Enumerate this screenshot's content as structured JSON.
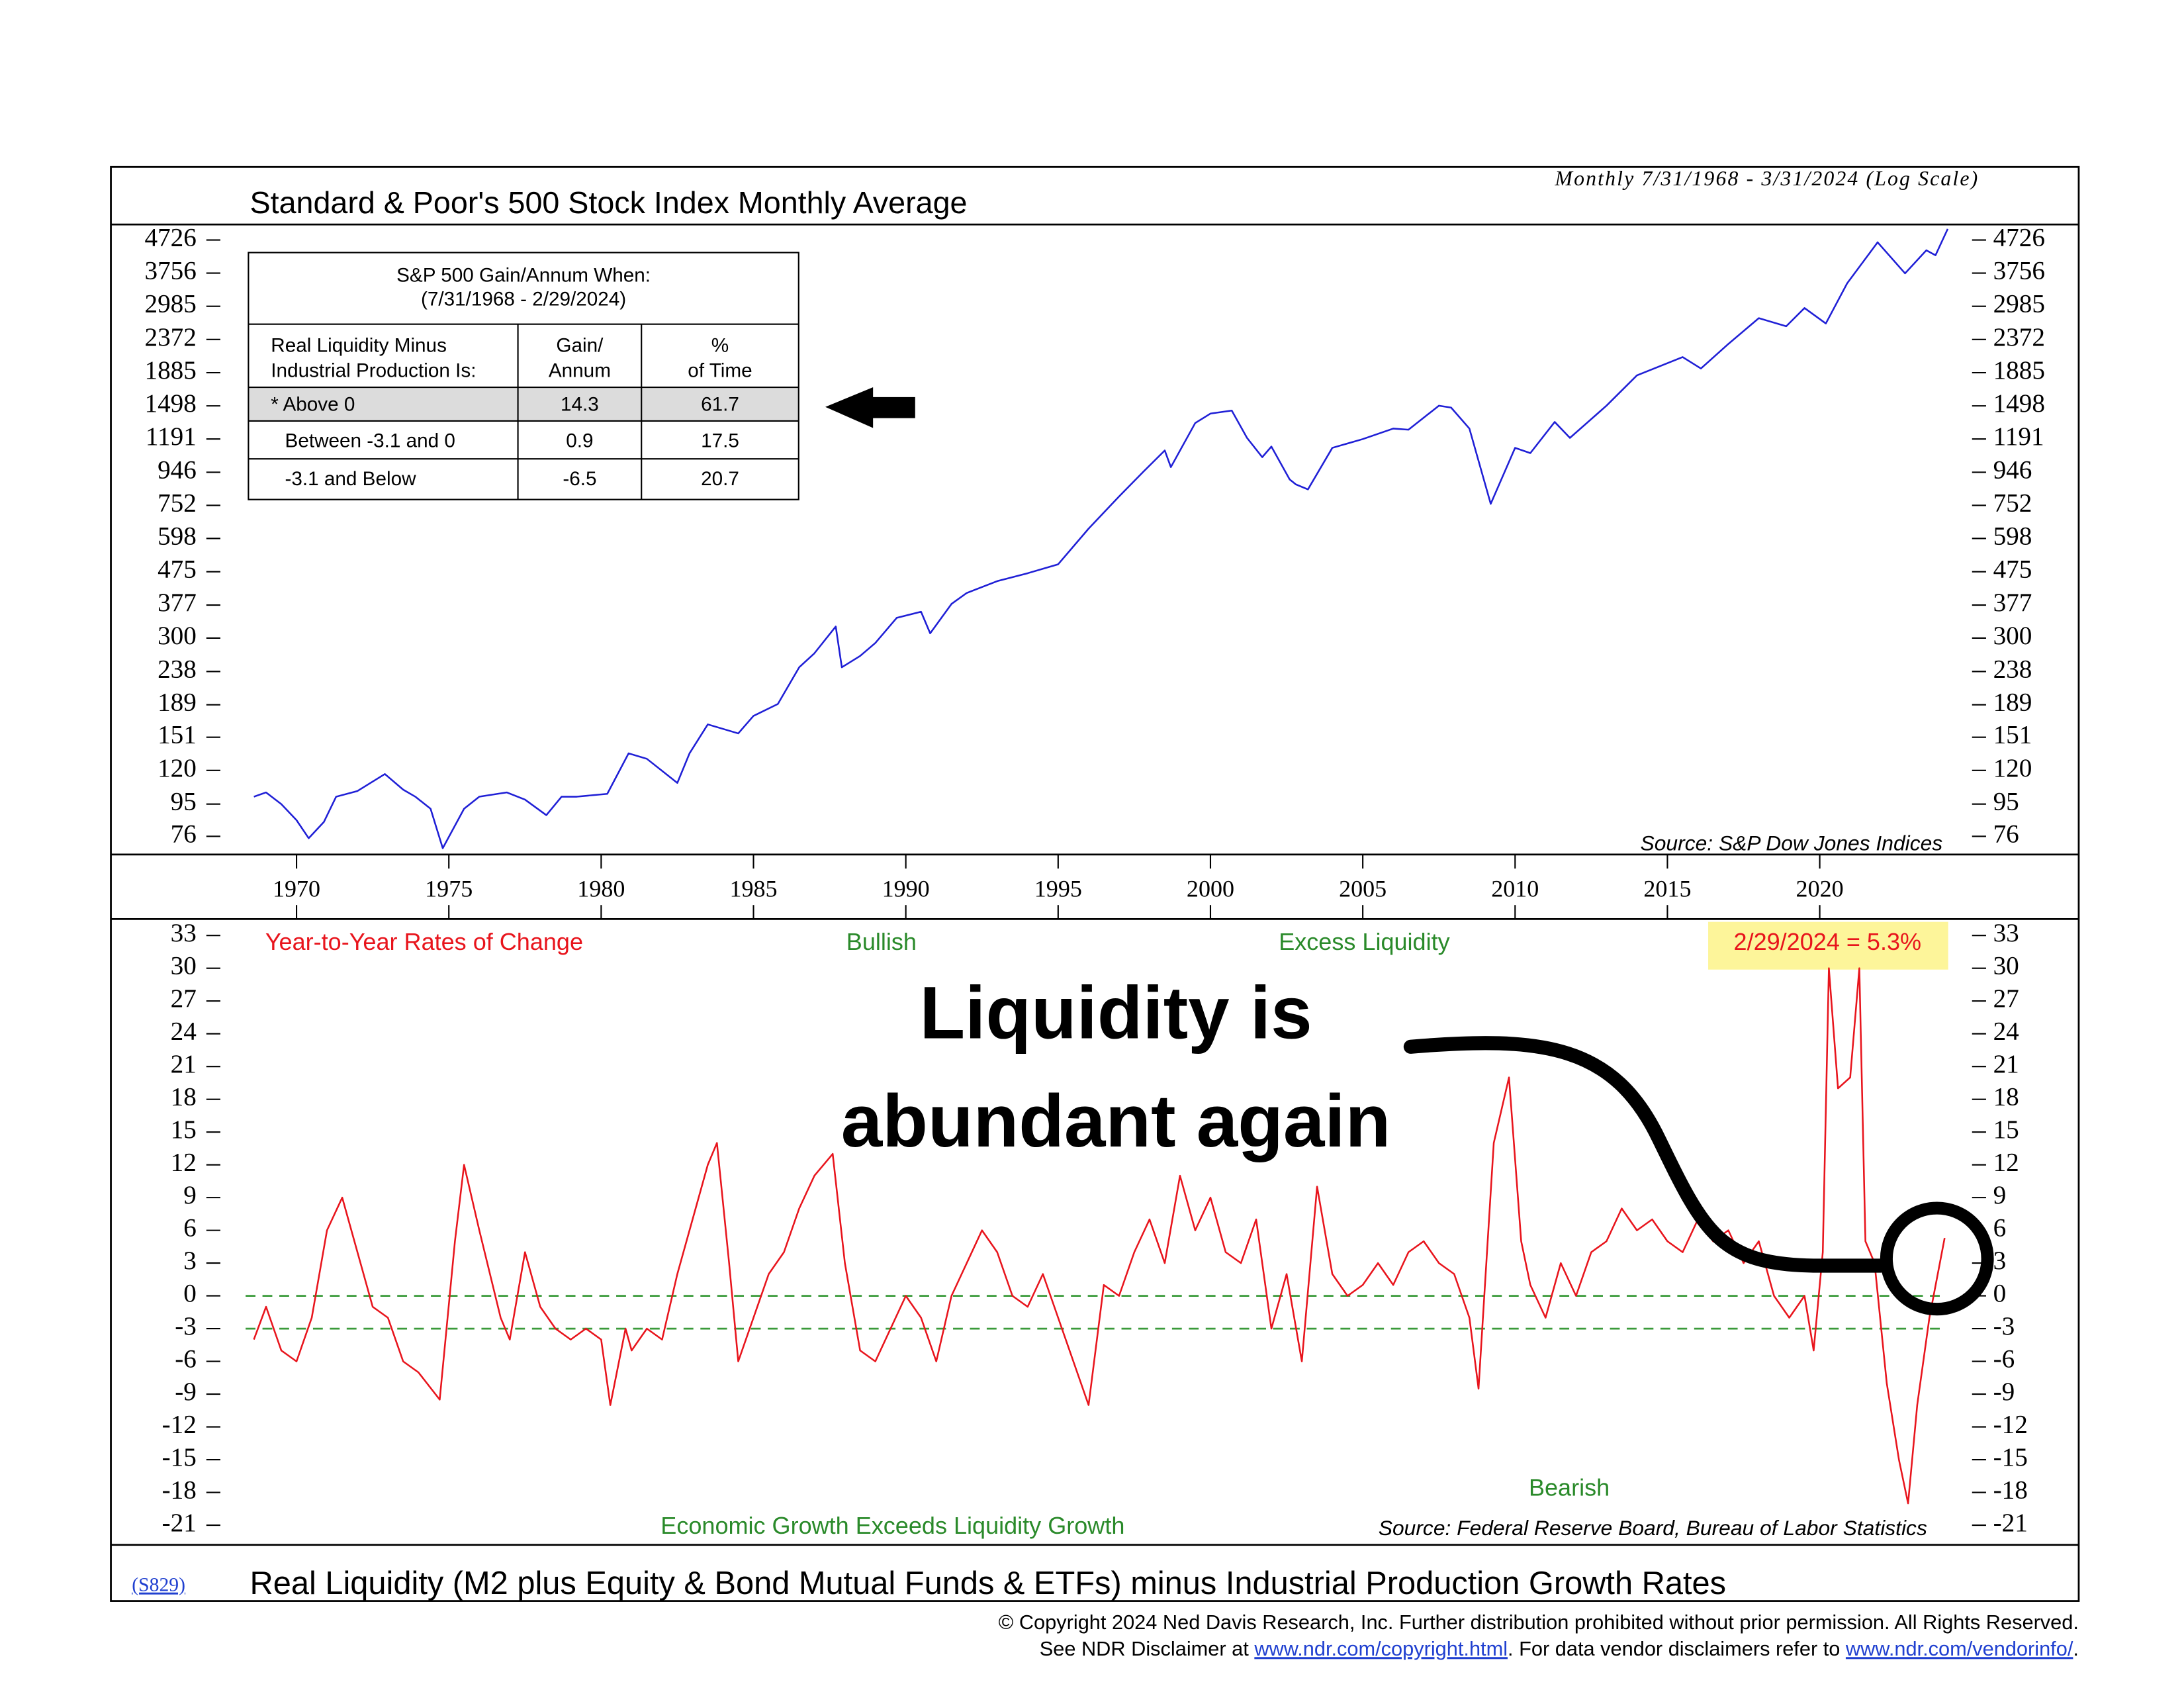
{
  "chart_data": [
    {
      "type": "line",
      "title": "Standard & Poor's 500 Stock Index Monthly Average",
      "subtitle": "Monthly 7/31/1968 - 3/31/2024 (Log Scale)",
      "source": "Source: S&P Dow Jones Indices",
      "log_scale": true,
      "color": "#1f1fd6",
      "xlim": [
        1967.5,
        2025
      ],
      "xticks": [
        1970,
        1975,
        1980,
        1985,
        1990,
        1995,
        2000,
        2005,
        2010,
        2015,
        2020
      ],
      "ylim": [
        67,
        5260
      ],
      "yticks": [
        4726,
        3756,
        2985,
        2372,
        1885,
        1498,
        1191,
        946,
        752,
        598,
        475,
        377,
        300,
        238,
        189,
        151,
        120,
        95,
        76
      ],
      "x": [
        1968.6,
        1969.0,
        1969.5,
        1970.0,
        1970.4,
        1970.9,
        1971.3,
        1972.0,
        1972.9,
        1973.5,
        1973.9,
        1974.4,
        1974.8,
        1975.5,
        1976.0,
        1976.9,
        1977.5,
        1978.2,
        1978.7,
        1979.2,
        1980.2,
        1980.9,
        1981.5,
        1982.5,
        1982.9,
        1983.5,
        1984.5,
        1985.0,
        1985.8,
        1986.5,
        1987.0,
        1987.7,
        1987.9,
        1988.5,
        1989.0,
        1989.7,
        1990.5,
        1990.8,
        1991.5,
        1992.0,
        1993.0,
        1994.0,
        1995.0,
        1996.0,
        1997.0,
        1997.8,
        1998.5,
        1998.7,
        1999.5,
        2000.0,
        2000.7,
        2001.2,
        2001.7,
        2002.0,
        2002.6,
        2002.8,
        2003.2,
        2004.0,
        2005.0,
        2006.0,
        2006.5,
        2007.5,
        2007.9,
        2008.5,
        2009.2,
        2010.0,
        2010.5,
        2011.3,
        2011.8,
        2013.0,
        2014.0,
        2015.5,
        2016.1,
        2017.0,
        2018.0,
        2018.9,
        2019.5,
        2020.2,
        2020.9,
        2021.9,
        2022.8,
        2023.5,
        2023.8,
        2024.2
      ],
      "values": [
        100,
        103,
        95,
        85,
        75,
        84,
        100,
        104,
        117,
        105,
        100,
        92,
        70,
        92,
        100,
        103,
        98,
        88,
        100,
        100,
        102,
        135,
        130,
        110,
        135,
        165,
        155,
        175,
        190,
        245,
        270,
        325,
        245,
        265,
        290,
        345,
        360,
        310,
        380,
        410,
        445,
        470,
        500,
        640,
        800,
        950,
        1100,
        980,
        1330,
        1420,
        1450,
        1200,
        1050,
        1130,
        900,
        870,
        840,
        1120,
        1190,
        1280,
        1270,
        1500,
        1480,
        1280,
        760,
        1120,
        1080,
        1340,
        1200,
        1500,
        1850,
        2100,
        1940,
        2300,
        2750,
        2600,
        2950,
        2650,
        3500,
        4650,
        3750,
        4400,
        4250,
        5100
      ]
    },
    {
      "type": "line",
      "title": "Real Liquidity (M2 plus Equity & Bond Mutual Funds & ETFs) minus Industrial Production Growth Rates",
      "source": "Source: Federal Reserve Board, Bureau of Labor Statistics",
      "annotations": [
        "Year-to-Year Rates of Change",
        "Bullish",
        "Excess Liquidity",
        "2/29/2024 = 5.3%",
        "Bearish",
        "Economic Growth Exceeds Liquidity Growth"
      ],
      "log_scale": false,
      "color": "#e8141c",
      "reference_lines": [
        0,
        -3
      ],
      "reference_color": "#3a9a3a",
      "xlim": [
        1967.5,
        2025
      ],
      "ylim": [
        -22.8,
        34.5
      ],
      "yticks": [
        33,
        30,
        27,
        24,
        21,
        18,
        15,
        12,
        9,
        6,
        3,
        0,
        -3,
        -6,
        -9,
        -12,
        -15,
        -18,
        -21
      ],
      "x": [
        1968.6,
        1969.0,
        1969.5,
        1970.0,
        1970.5,
        1971.0,
        1971.5,
        1972.0,
        1972.5,
        1973.0,
        1973.5,
        1974.0,
        1974.7,
        1975.2,
        1975.5,
        1976.0,
        1976.7,
        1977.0,
        1977.5,
        1978.0,
        1978.5,
        1979.0,
        1979.5,
        1980.0,
        1980.3,
        1980.8,
        1981.0,
        1981.5,
        1982.0,
        1982.5,
        1983.0,
        1983.5,
        1983.8,
        1984.2,
        1984.5,
        1985.0,
        1985.5,
        1986.0,
        1986.5,
        1987.0,
        1987.6,
        1988.0,
        1988.5,
        1989.0,
        1989.5,
        1990.0,
        1990.5,
        1991.0,
        1991.5,
        1992.0,
        1992.5,
        1993.0,
        1993.5,
        1994.0,
        1994.5,
        1995.0,
        1995.5,
        1996.0,
        1996.5,
        1997.0,
        1997.5,
        1998.0,
        1998.5,
        1999.0,
        1999.5,
        2000.0,
        2000.5,
        2001.0,
        2001.5,
        2002.0,
        2002.5,
        2003.0,
        2003.5,
        2004.0,
        2004.5,
        2005.0,
        2005.5,
        2006.0,
        2006.5,
        2007.0,
        2007.5,
        2008.0,
        2008.5,
        2008.8,
        2009.3,
        2009.8,
        2010.2,
        2010.5,
        2011.0,
        2011.5,
        2012.0,
        2012.5,
        2013.0,
        2013.5,
        2014.0,
        2014.5,
        2015.0,
        2015.5,
        2016.0,
        2016.5,
        2017.0,
        2017.5,
        2018.0,
        2018.5,
        2019.0,
        2019.5,
        2019.8,
        2020.1,
        2020.3,
        2020.6,
        2021.0,
        2021.3,
        2021.5,
        2021.8,
        2022.2,
        2022.6,
        2022.9,
        2023.2,
        2023.6,
        2024.1
      ],
      "values": [
        -4,
        -1,
        -5,
        -6,
        -2,
        6,
        9,
        4,
        -1,
        -2,
        -6,
        -7,
        -9.5,
        5,
        12,
        6,
        -2,
        -4,
        4,
        -1,
        -3,
        -4,
        -3,
        -4,
        -10,
        -3,
        -5,
        -3,
        -4,
        2,
        7,
        12,
        14,
        3,
        -6,
        -2,
        2,
        4,
        8,
        11,
        13,
        3,
        -5,
        -6,
        -3,
        0,
        -2,
        -6,
        0,
        3,
        6,
        4,
        0,
        -1,
        2,
        -2,
        -6,
        -10,
        1,
        0,
        4,
        7,
        3,
        11,
        6,
        9,
        4,
        3,
        7,
        -3,
        2,
        -6,
        10,
        2,
        0,
        1,
        3,
        1,
        4,
        5,
        3,
        2,
        -2,
        -8.5,
        14,
        20,
        5,
        1,
        -2,
        3,
        0,
        4,
        5,
        8,
        6,
        7,
        5,
        4,
        7,
        5,
        6,
        3,
        5,
        0,
        -2,
        0,
        -5,
        4,
        30,
        19,
        20,
        30,
        5,
        3,
        -8,
        -15,
        -19,
        -10,
        -2,
        5.3
      ]
    }
  ],
  "table": {
    "title": [
      "S&P 500 Gain/Annum When:",
      "(7/31/1968 - 2/29/2024)"
    ],
    "header": [
      [
        "Real Liquidity Minus",
        "Industrial Production Is:"
      ],
      [
        "Gain/",
        "Annum"
      ],
      [
        "%",
        "of Time"
      ]
    ],
    "rows": [
      [
        "* Above 0",
        14.3,
        61.7
      ],
      [
        "Between -3.1 and 0",
        0.9,
        17.5
      ],
      [
        "-3.1 and Below",
        -6.5,
        20.7
      ]
    ]
  },
  "callout": [
    "Liquidity is",
    "abundant again"
  ],
  "chart_code": "(S829)",
  "footer": {
    "line1": "© Copyright 2024 Ned Davis Research, Inc.  Further distribution prohibited without prior permission.  All Rights Reserved.",
    "line2": [
      "See NDR Disclaimer at ",
      "www.ndr.com/copyright.html",
      ". For data vendor disclaimers refer to ",
      "www.ndr.com/vendorinfo/",
      "."
    ]
  }
}
